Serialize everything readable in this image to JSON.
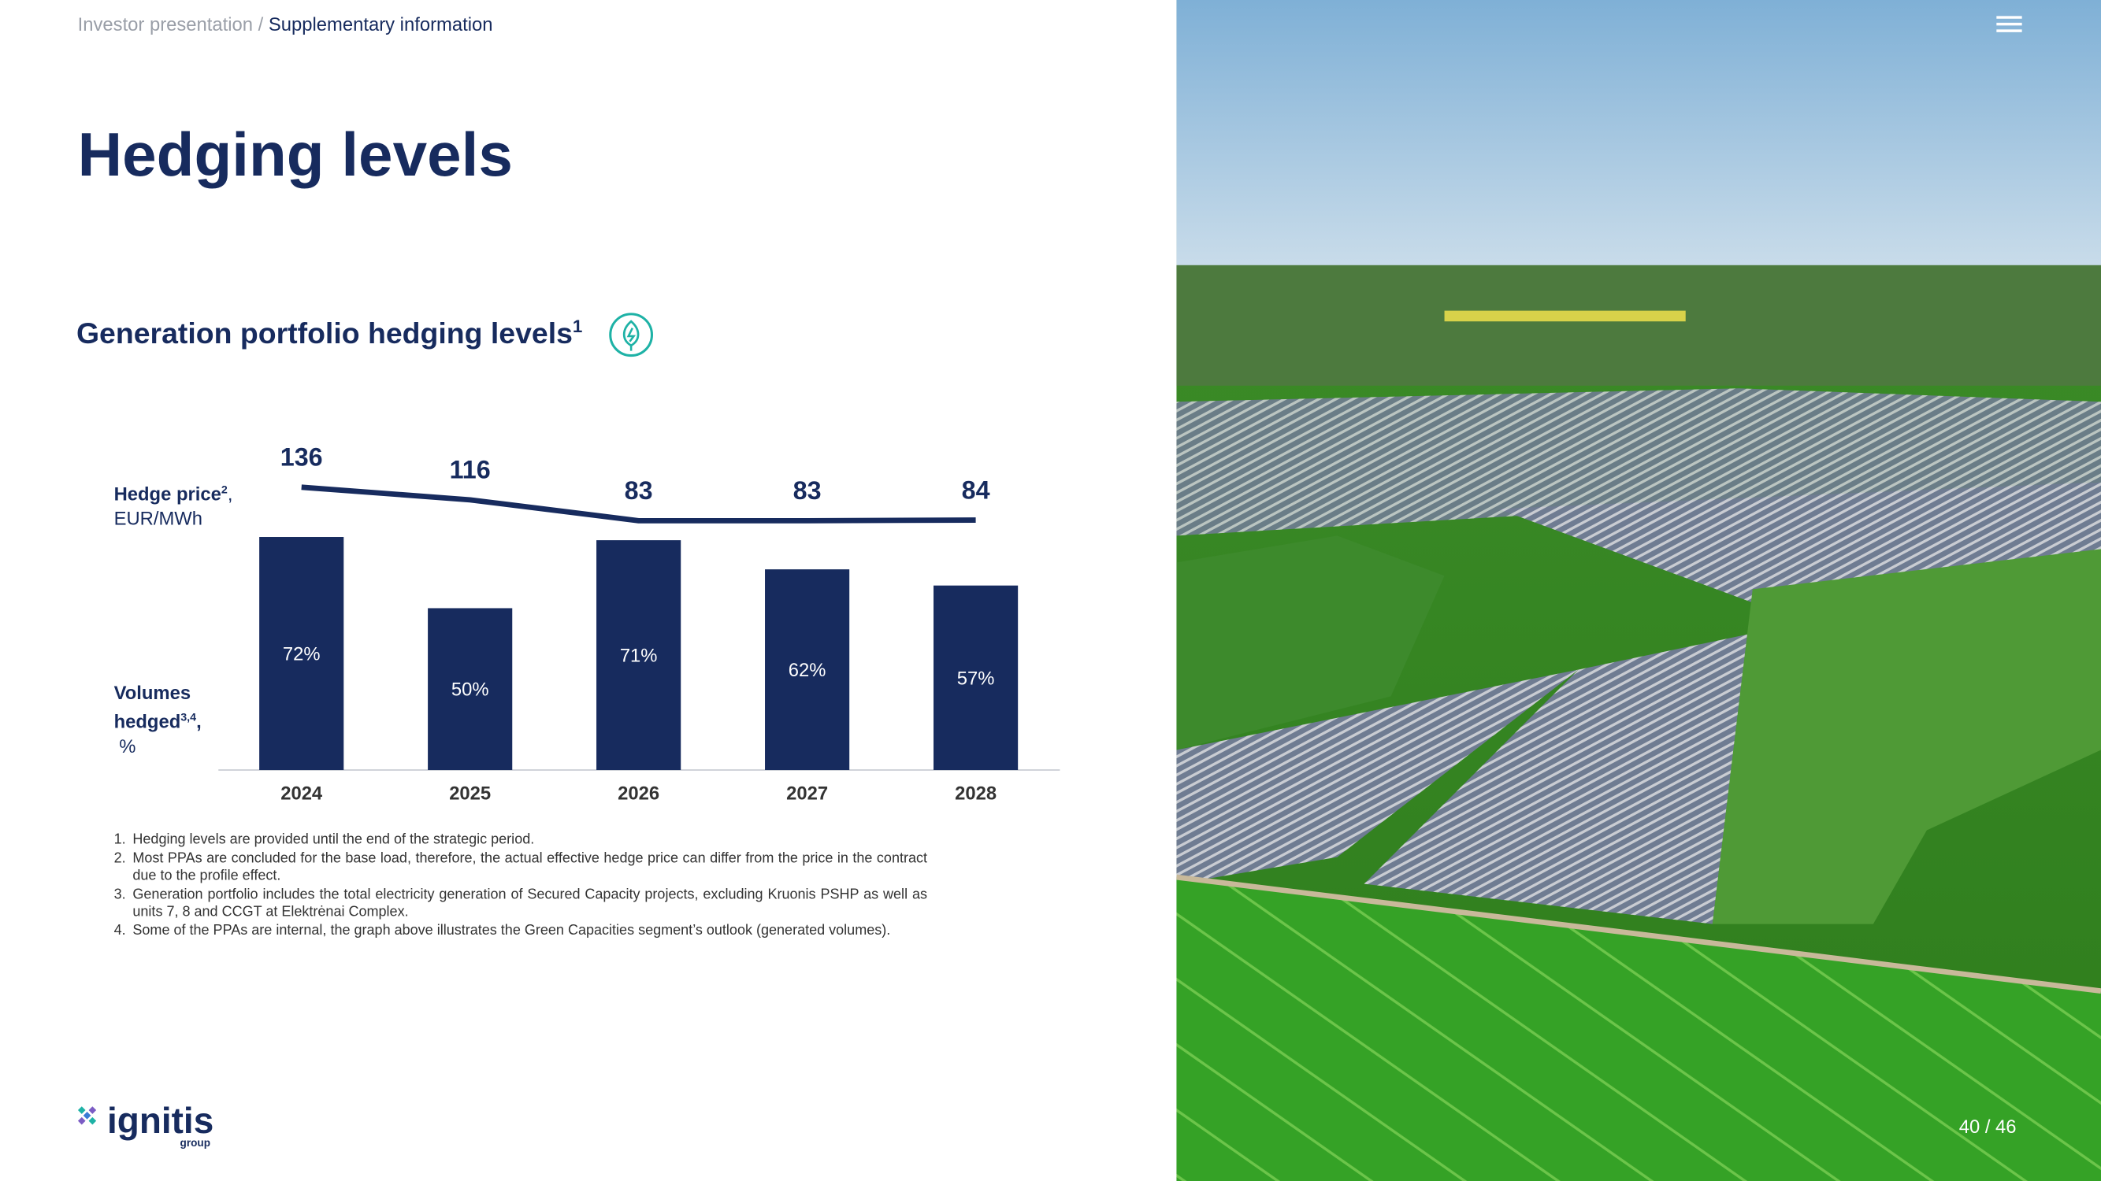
{
  "breadcrumb": {
    "parent": "Investor presentation",
    "separator": "/",
    "current": "Supplementary information"
  },
  "title": "Hedging levels",
  "section": {
    "title": "Generation portfolio hedging levels",
    "sup": "1"
  },
  "chart_data": {
    "type": "bar_line",
    "categories": [
      "2024",
      "2025",
      "2026",
      "2027",
      "2028"
    ],
    "series": [
      {
        "name": "Hedge price",
        "name_sup": "2",
        "name_tail": ",",
        "unit": "EUR/MWh",
        "type": "line",
        "color": "#172b5e",
        "values": [
          136,
          116,
          83,
          83,
          84
        ]
      },
      {
        "name": "Volumes hedged",
        "name_sup": "3,4",
        "name_tail": ",",
        "unit": "%",
        "type": "bar",
        "color": "#172b5e",
        "values": [
          72,
          50,
          71,
          62,
          57
        ],
        "value_labels": [
          "72%",
          "50%",
          "71%",
          "62%",
          "57%"
        ]
      }
    ]
  },
  "footnotes": [
    {
      "marker": "1.",
      "text": "Hedging levels are provided until the end of the strategic period."
    },
    {
      "marker": "2.",
      "text": "Most PPAs are concluded for the base load, therefore, the actual effective hedge price can differ from the price in the contract due to the profile effect."
    },
    {
      "marker": "3.",
      "text": "Generation portfolio includes the total electricity generation of Secured Capacity projects, excluding Kruonis PSHP as well as units 7, 8 and CCGT at Elektrėnai Complex."
    },
    {
      "marker": "4.",
      "text": "Some of the PPAs are internal, the graph above illustrates the Green Capacities segment’s outlook (generated volumes)."
    }
  ],
  "logo": {
    "name": "ignitis",
    "sub": "group"
  },
  "pagination": {
    "current": 40,
    "separator": "/",
    "total": 46
  }
}
